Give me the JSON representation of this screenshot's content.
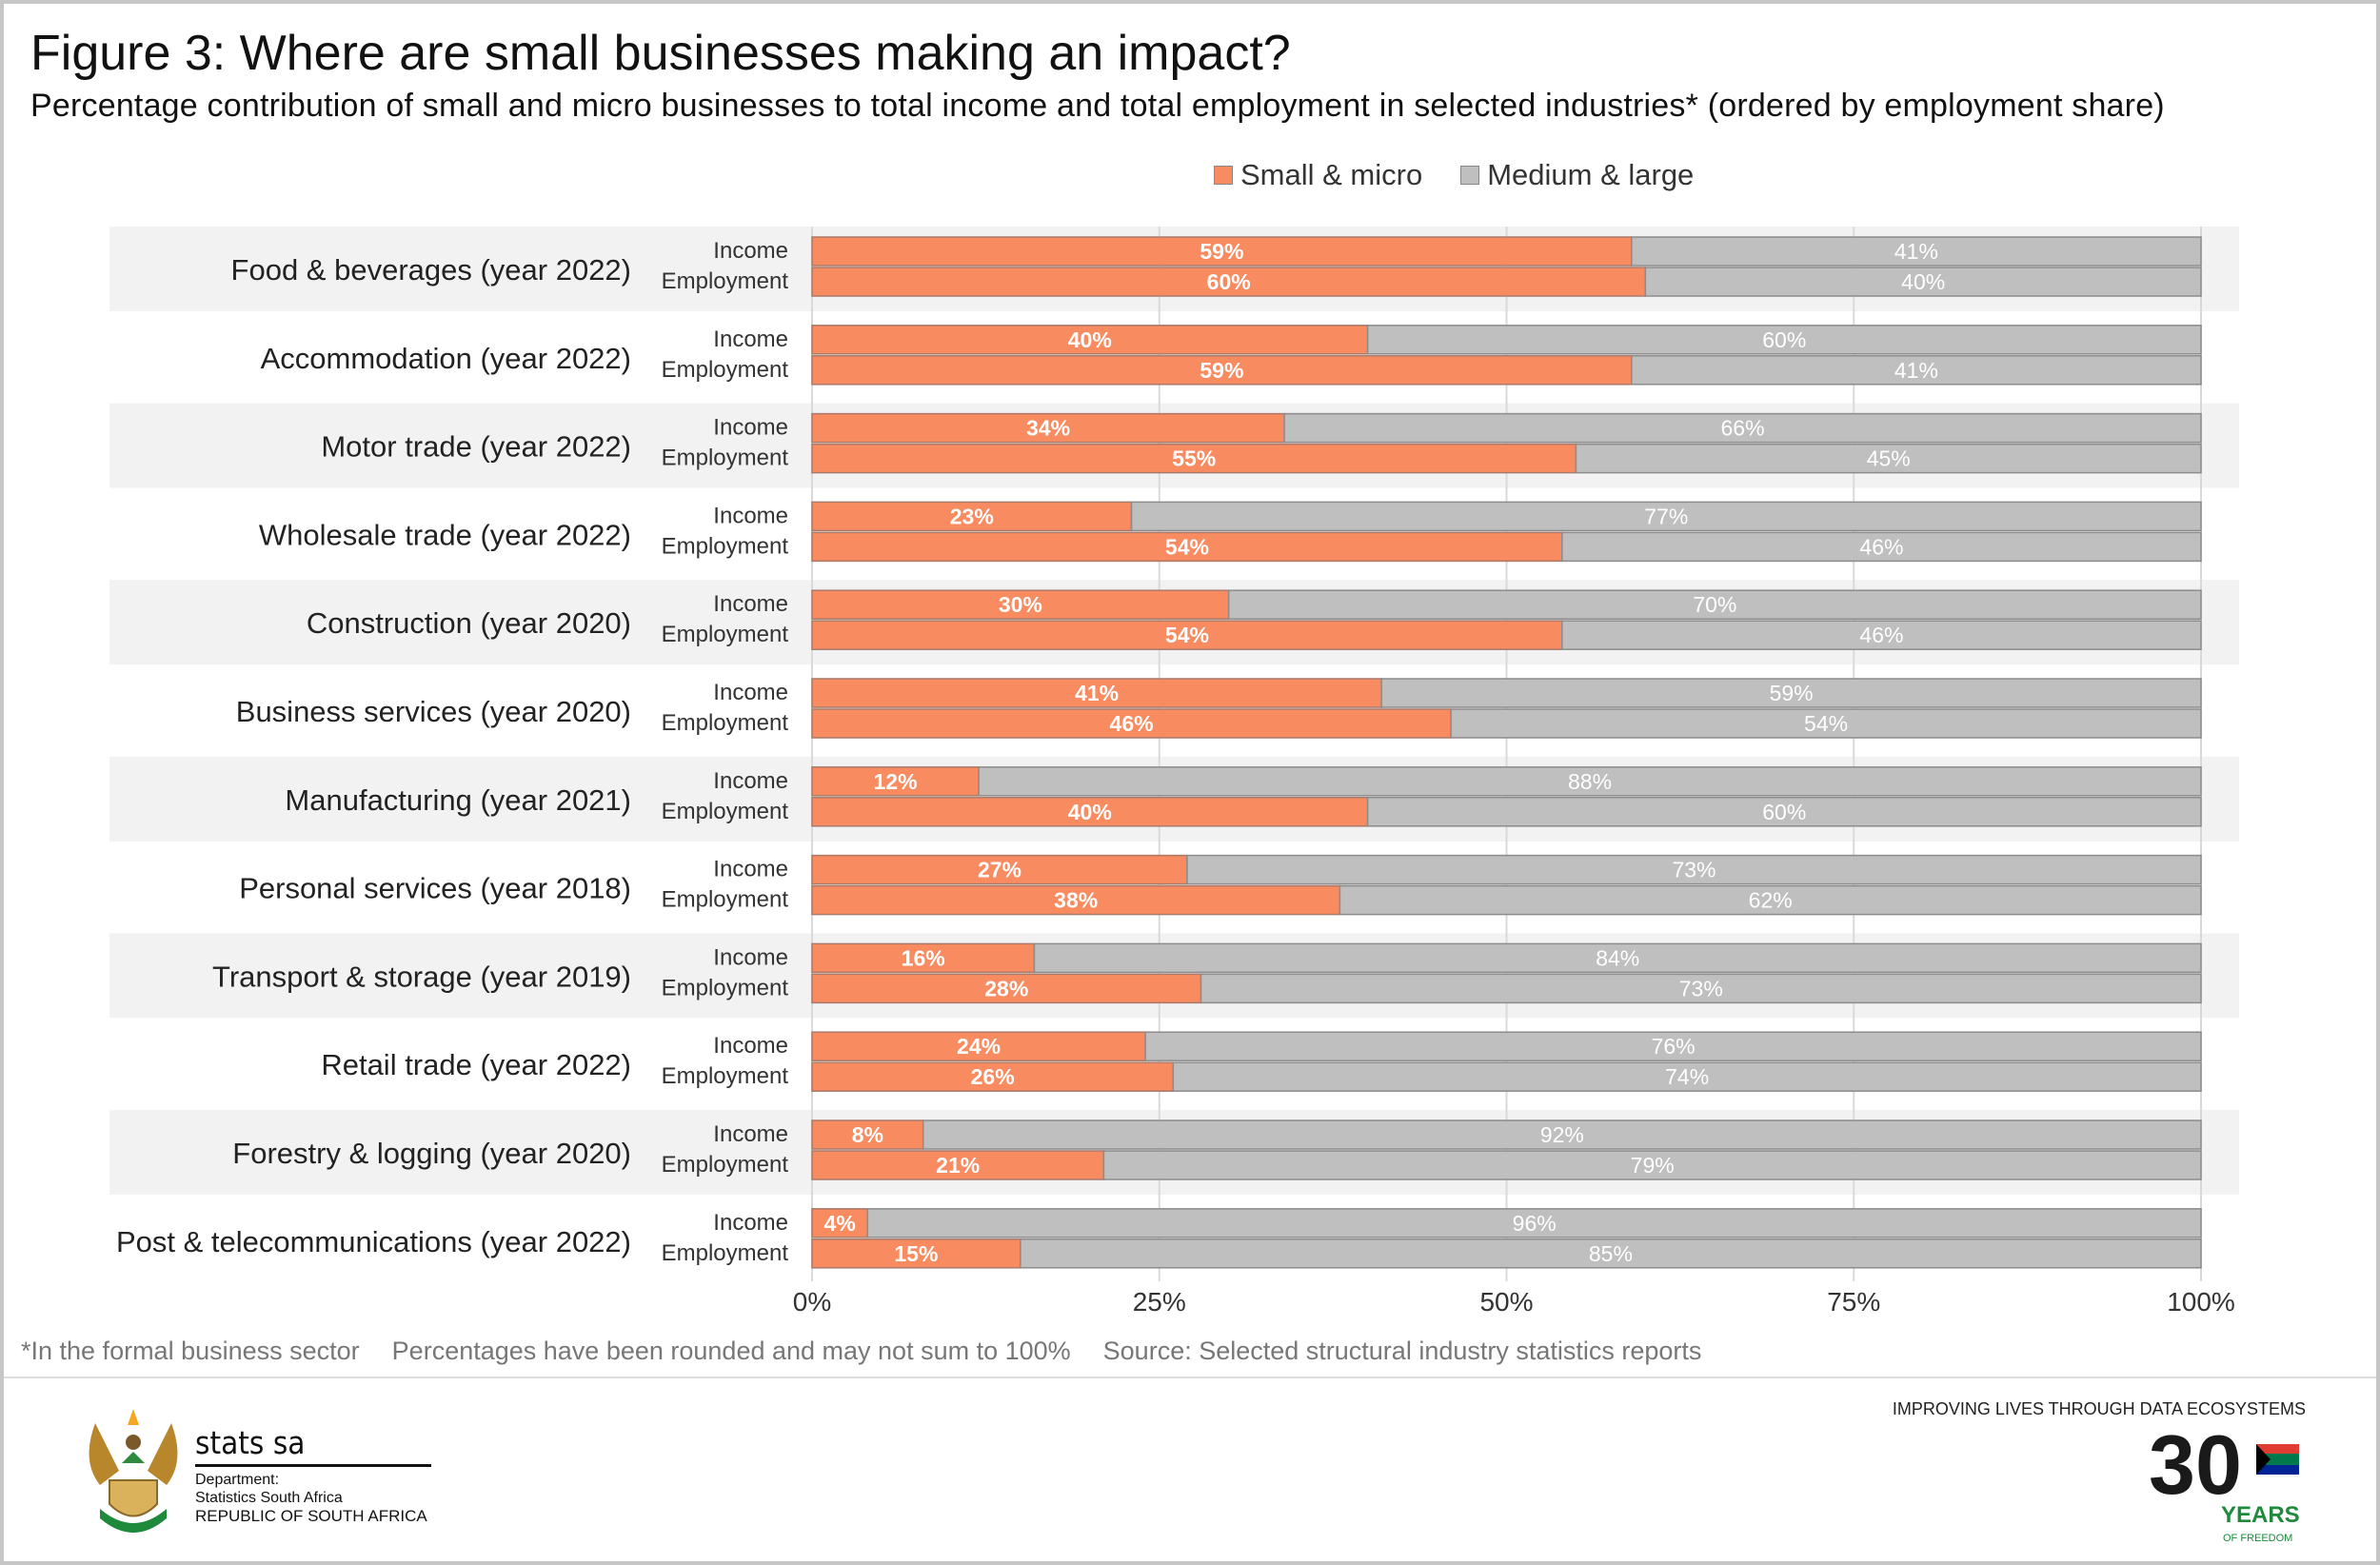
{
  "title": "Figure 3: Where are small businesses making an impact?",
  "subtitle": "Percentage contribution of small and micro businesses to total income and total employment in selected industries* (ordered by employment share)",
  "colors": {
    "small_micro": "#F98B60",
    "medium_large": "#BFBFBF",
    "band": "#F2F2F2"
  },
  "chart_data": {
    "type": "bar",
    "orientation": "horizontal",
    "stacked": true,
    "legend_position": "top",
    "legend": [
      "Small & micro",
      "Medium & large"
    ],
    "sub_categories": [
      "Income",
      "Employment"
    ],
    "categories": [
      "Food & beverages (year 2022)",
      "Accommodation (year 2022)",
      "Motor trade (year 2022)",
      "Wholesale trade (year 2022)",
      "Construction (year 2020)",
      "Business services (year 2020)",
      "Manufacturing (year 2021)",
      "Personal services (year 2018)",
      "Transport & storage (year 2019)",
      "Retail trade (year 2022)",
      "Forestry & logging (year 2020)",
      "Post & telecommunications (year 2022)"
    ],
    "series": [
      {
        "name": "Small & micro",
        "income": [
          59,
          40,
          34,
          23,
          30,
          41,
          12,
          27,
          16,
          24,
          8,
          4
        ],
        "employment": [
          60,
          59,
          55,
          54,
          54,
          46,
          40,
          38,
          28,
          26,
          21,
          15
        ]
      },
      {
        "name": "Medium & large",
        "income": [
          41,
          60,
          66,
          77,
          70,
          59,
          88,
          73,
          84,
          76,
          92,
          96
        ],
        "employment": [
          40,
          41,
          45,
          46,
          46,
          54,
          60,
          62,
          73,
          74,
          79,
          85
        ]
      }
    ],
    "xlim": [
      0,
      100
    ],
    "x_ticks": [
      "0%",
      "25%",
      "50%",
      "75%",
      "100%"
    ],
    "grid": true
  },
  "footnotes": {
    "note1": "*In the formal business sector",
    "note2": "Percentages have been rounded and may not sum to 100%",
    "source": "Source: Selected structural industry statistics reports"
  },
  "logo_left": {
    "name": "stats sa",
    "dept": "Department:",
    "org": "Statistics South Africa",
    "country": "REPUBLIC OF SOUTH AFRICA"
  },
  "logo_right": {
    "tagline": "IMPROVING LIVES THROUGH DATA ECOSYSTEMS",
    "number": "30",
    "years": "YEARS",
    "freedom": "OF FREEDOM",
    "arc": "South Africa 1994 - 2024"
  }
}
